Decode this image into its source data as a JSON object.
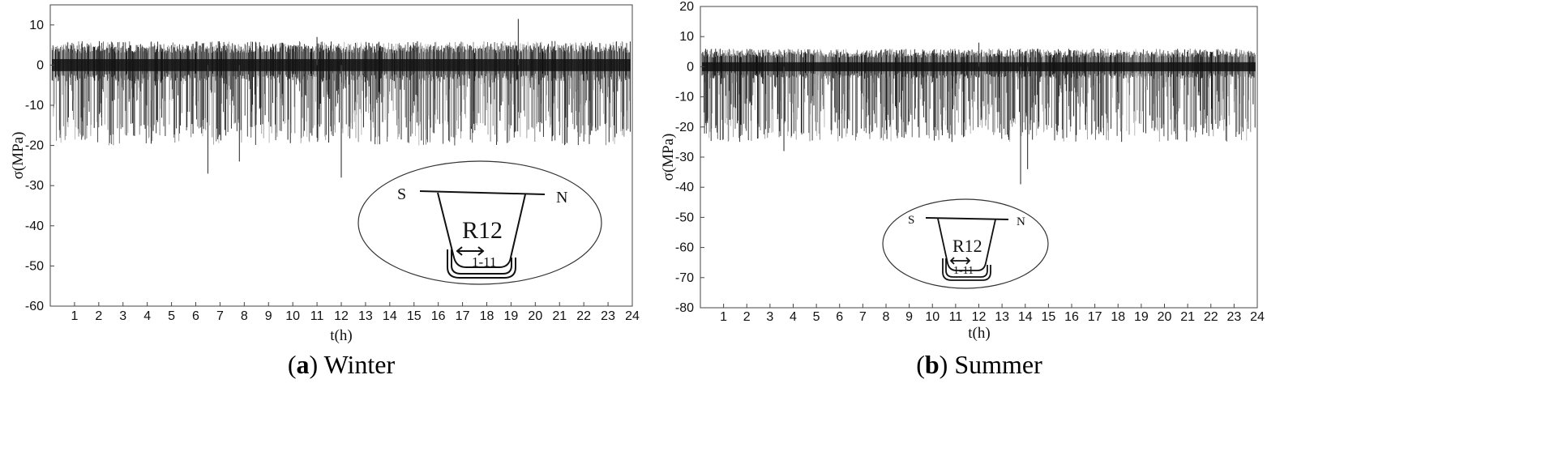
{
  "chart_data": [
    {
      "type": "line",
      "subplot_tag": "a",
      "caption": "Winter",
      "xlabel": "t(h)",
      "ylabel": "σ(MPa)",
      "xlim": [
        0,
        24
      ],
      "ylim": [
        -60,
        15
      ],
      "xticks": [
        "1",
        "2",
        "3",
        "4",
        "5",
        "6",
        "7",
        "8",
        "9",
        "10",
        "11",
        "12",
        "13",
        "14",
        "15",
        "16",
        "17",
        "18",
        "19",
        "20",
        "21",
        "22",
        "23",
        "24"
      ],
      "yticks": [
        "10",
        "0",
        "-10",
        "-20",
        "-30",
        "-40",
        "-50",
        "-60"
      ],
      "baseline_band": [
        -2,
        3
      ],
      "typical_range": [
        -20,
        6
      ],
      "extremes": [
        {
          "t": 6.5,
          "sigma": -27
        },
        {
          "t": 7.8,
          "sigma": -24
        },
        {
          "t": 12.0,
          "sigma": -28
        },
        {
          "t": 19.3,
          "sigma": 11.5
        },
        {
          "t": 11.0,
          "sigma": 7
        }
      ],
      "inset": {
        "left": "S",
        "right": "N",
        "rib": "R12",
        "point": "1-11"
      }
    },
    {
      "type": "line",
      "subplot_tag": "b",
      "caption": "Summer",
      "xlabel": "t(h)",
      "ylabel": "σ(MPa)",
      "xlim": [
        0,
        24
      ],
      "ylim": [
        -80,
        20
      ],
      "xticks": [
        "1",
        "2",
        "3",
        "4",
        "5",
        "6",
        "7",
        "8",
        "9",
        "10",
        "11",
        "12",
        "13",
        "14",
        "15",
        "16",
        "17",
        "18",
        "19",
        "20",
        "21",
        "22",
        "23",
        "24"
      ],
      "yticks": [
        "20",
        "10",
        "0",
        "-10",
        "-20",
        "-30",
        "-40",
        "-50",
        "-60",
        "-70",
        "-80"
      ],
      "baseline_band": [
        -2,
        3
      ],
      "typical_range": [
        -25,
        6
      ],
      "extremes": [
        {
          "t": 13.8,
          "sigma": -39
        },
        {
          "t": 14.1,
          "sigma": -34
        },
        {
          "t": 3.6,
          "sigma": -28
        },
        {
          "t": 12.0,
          "sigma": 8
        }
      ],
      "inset": {
        "left": "S",
        "right": "N",
        "rib": "R12",
        "point": "1-11"
      }
    }
  ]
}
